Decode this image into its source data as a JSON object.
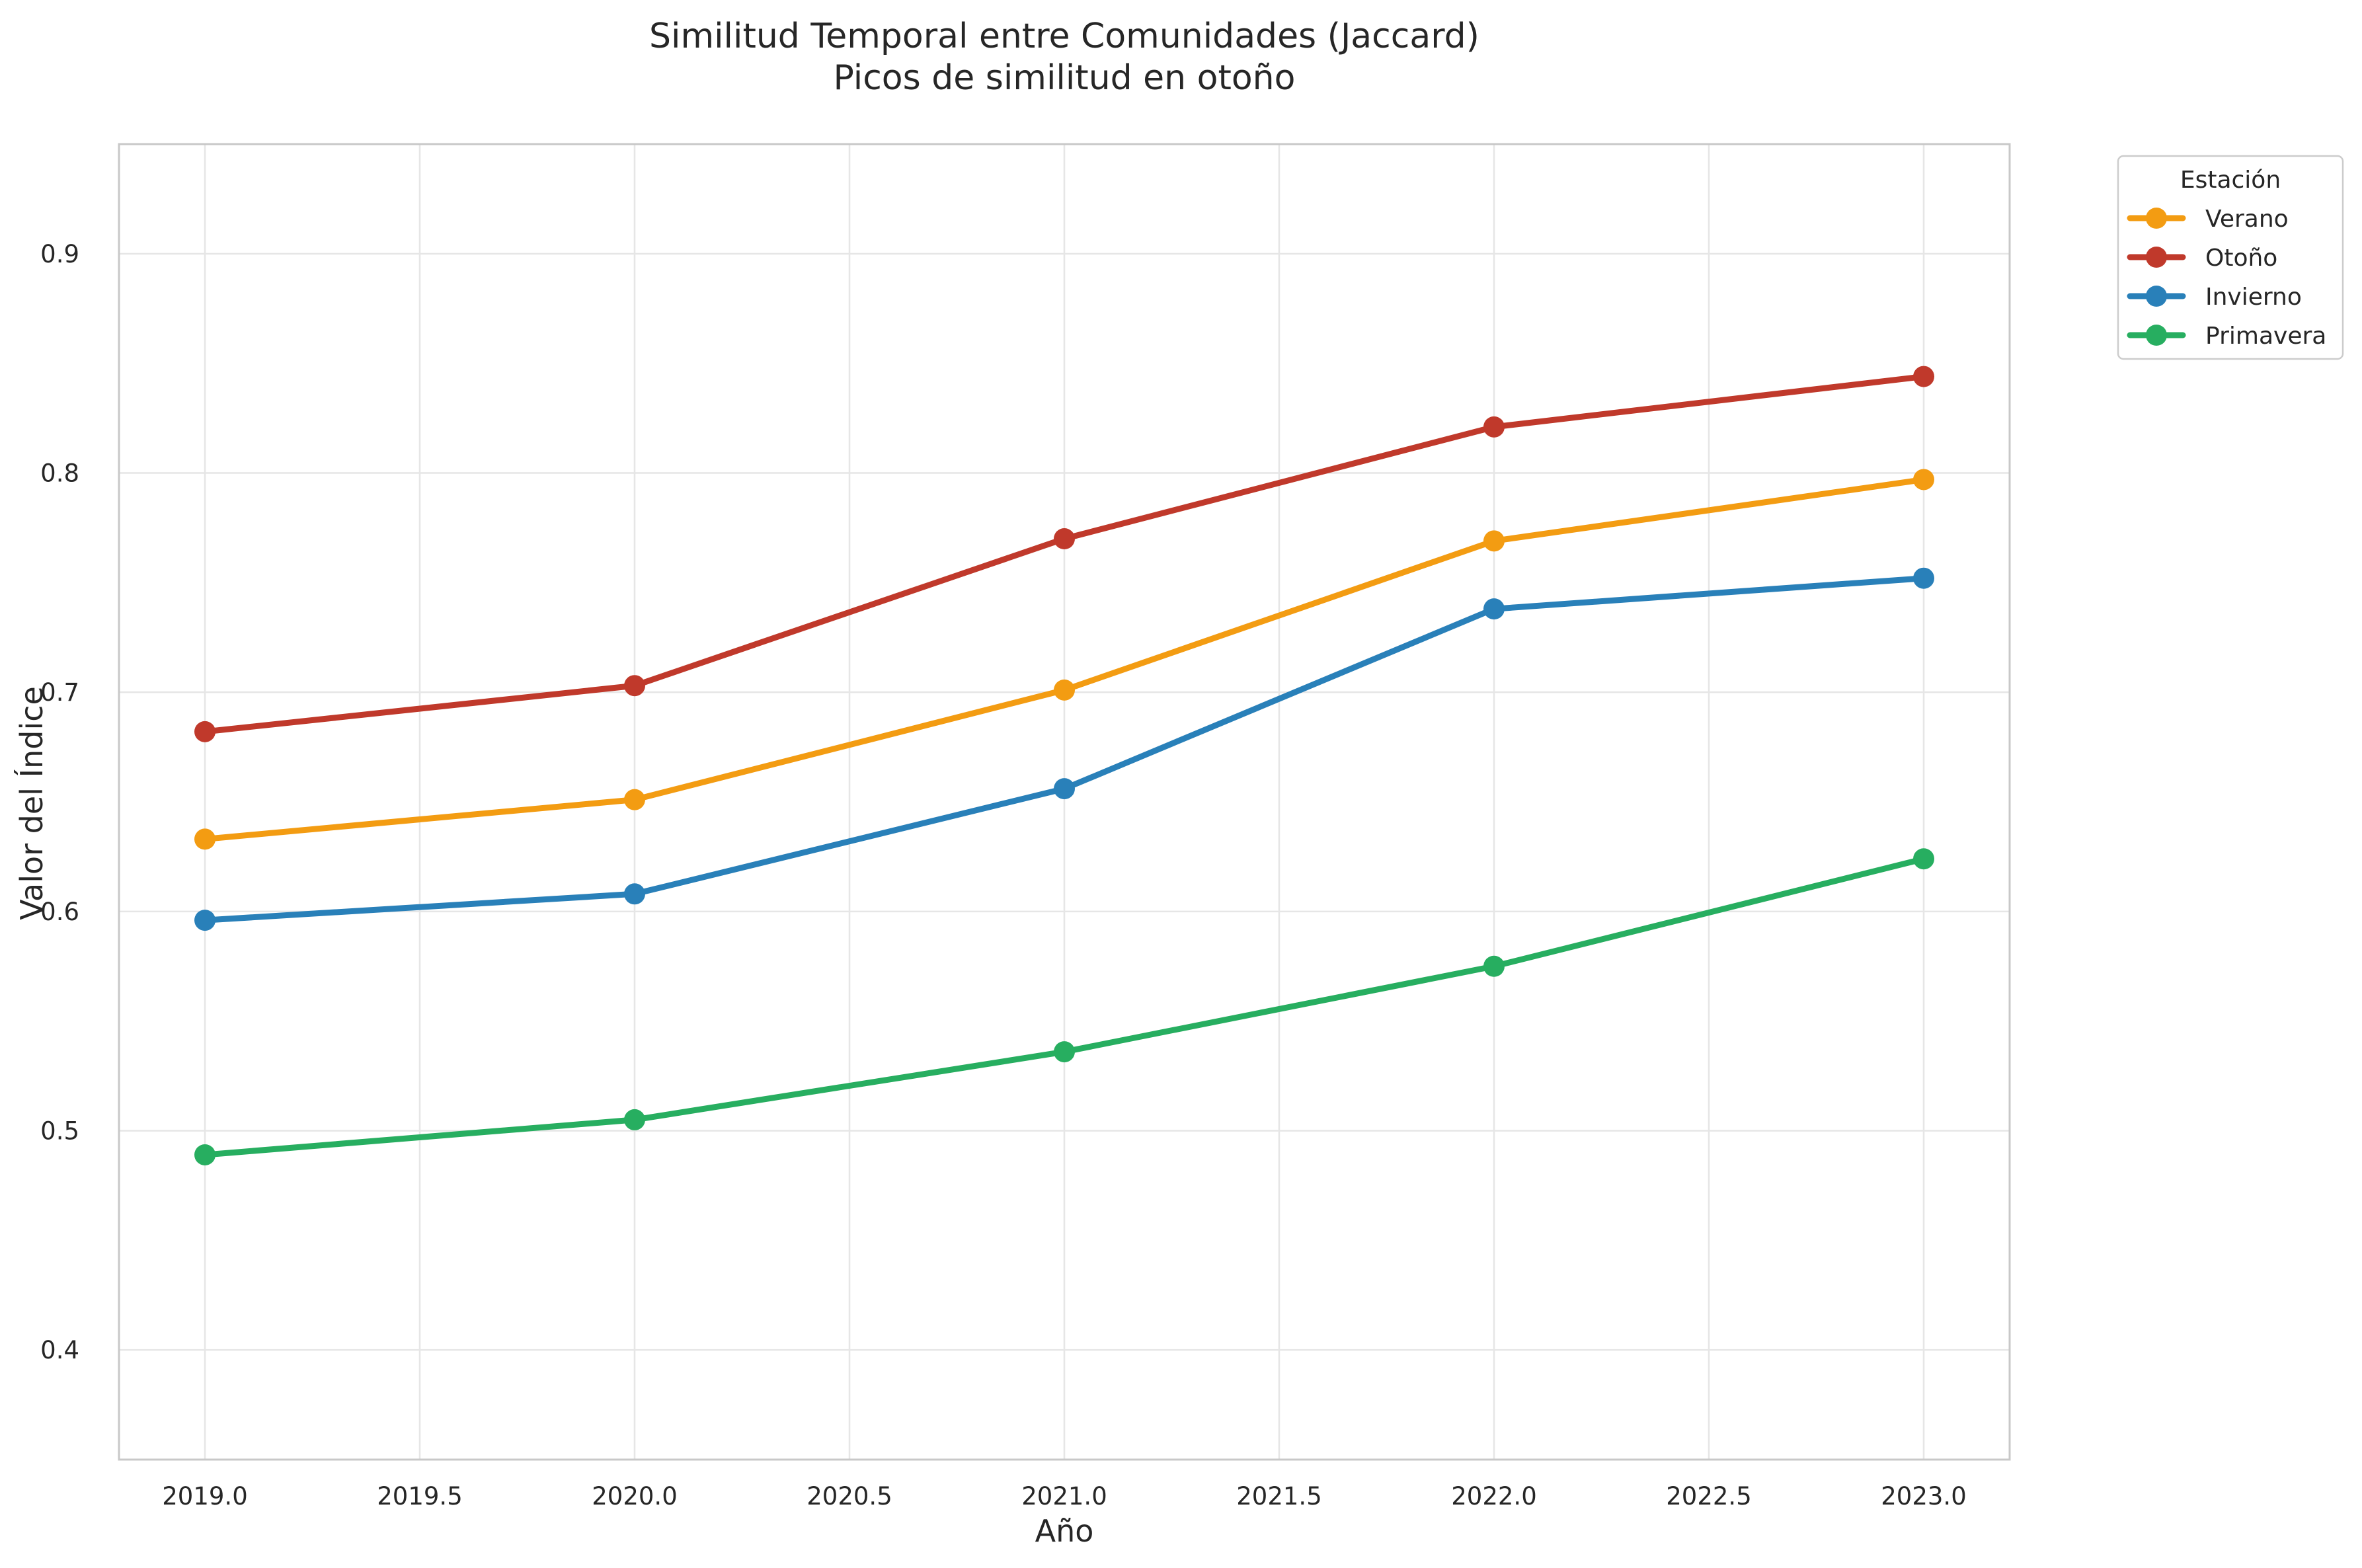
{
  "chart_data": {
    "type": "line",
    "title": "Similitud Temporal entre Comunidades (Jaccard)",
    "subtitle": "Picos de similitud en otoño",
    "xlabel": "Año",
    "ylabel": "Valor del Índice",
    "xlim": [
      2018.8,
      2023.2
    ],
    "ylim": [
      0.35,
      0.95
    ],
    "xticks": [
      2019.0,
      2019.5,
      2020.0,
      2020.5,
      2021.0,
      2021.5,
      2022.0,
      2022.5,
      2023.0
    ],
    "xtick_labels": [
      "2019.0",
      "2019.5",
      "2020.0",
      "2020.5",
      "2021.0",
      "2021.5",
      "2022.0",
      "2022.5",
      "2023.0"
    ],
    "yticks": [
      0.4,
      0.5,
      0.6,
      0.7,
      0.8,
      0.9
    ],
    "ytick_labels": [
      "0.4",
      "0.5",
      "0.6",
      "0.7",
      "0.8",
      "0.9"
    ],
    "grid": true,
    "legend": {
      "title": "Estación",
      "placement": "outside-top-right"
    },
    "x": [
      2019,
      2020,
      2021,
      2022,
      2023
    ],
    "series": [
      {
        "name": "Verano",
        "color": "#f39c12",
        "values": [
          0.633,
          0.651,
          0.701,
          0.769,
          0.797
        ]
      },
      {
        "name": "Otoño",
        "color": "#c0392b",
        "values": [
          0.682,
          0.703,
          0.77,
          0.821,
          0.844
        ]
      },
      {
        "name": "Invierno",
        "color": "#2980b9",
        "values": [
          0.596,
          0.608,
          0.656,
          0.738,
          0.752
        ]
      },
      {
        "name": "Primavera",
        "color": "#27ae60",
        "values": [
          0.489,
          0.505,
          0.536,
          0.575,
          0.624
        ]
      }
    ]
  }
}
